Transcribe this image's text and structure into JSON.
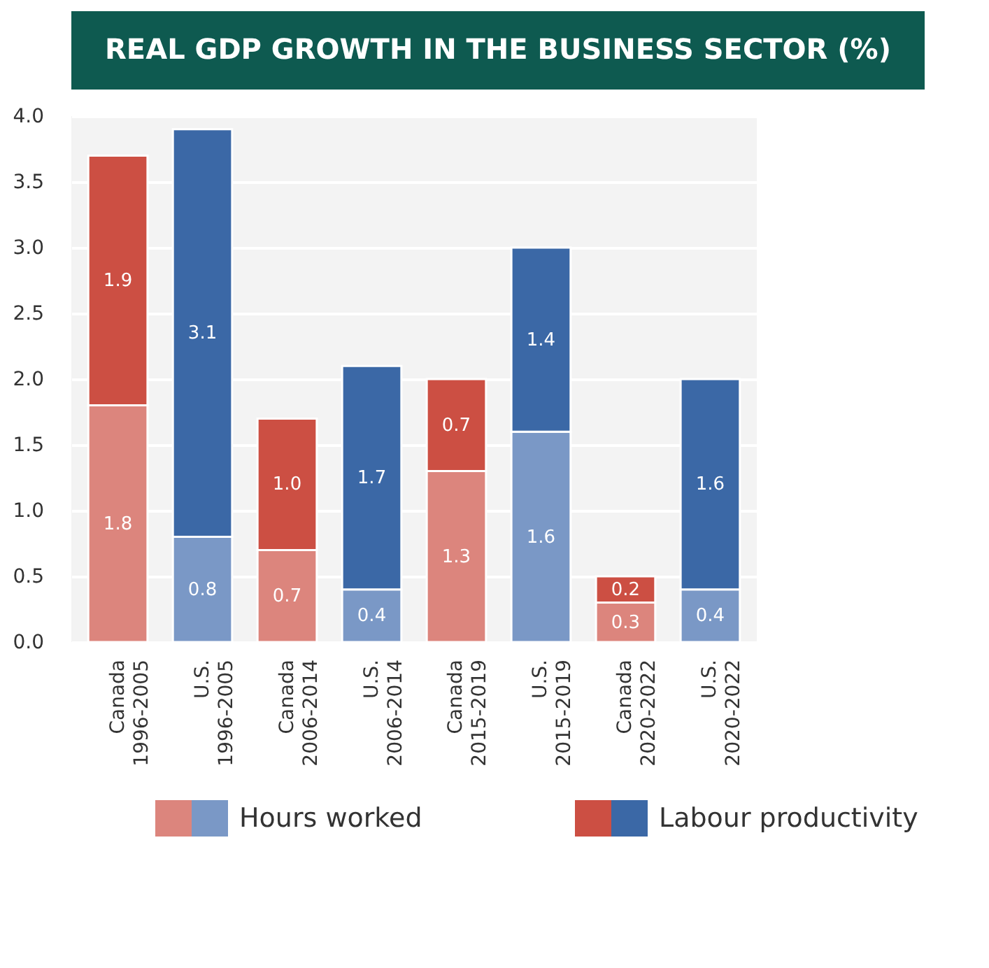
{
  "chart_data": {
    "type": "bar",
    "title": "REAL GDP GROWTH IN THE BUSINESS SECTOR (%)",
    "categories": [
      "Canada\n1996-2005",
      "U.S.\n1996-2005",
      "Canada\n2006-2014",
      "U.S.\n2006-2014",
      "Canada\n2015-2019",
      "U.S.\n2015-2019",
      "Canada\n2020-2022",
      "U.S.\n2020-2022"
    ],
    "stacked": true,
    "series": [
      {
        "name": "Hours worked",
        "colors": [
          "#dc857d",
          "#7a98c6",
          "#dc857d",
          "#7a98c6",
          "#dc857d",
          "#7a98c6",
          "#dc857d",
          "#7a98c6"
        ],
        "values": [
          1.8,
          0.8,
          0.7,
          0.4,
          1.3,
          1.6,
          0.3,
          0.4
        ],
        "value_labels": [
          "1.8",
          "0.8",
          "0.7",
          "0.4",
          "1.3",
          "1.6",
          "0.3",
          "0.4"
        ]
      },
      {
        "name": "Labour productivity",
        "colors": [
          "#cc4f43",
          "#3b68a6",
          "#cc4f43",
          "#3b68a6",
          "#cc4f43",
          "#3b68a6",
          "#cc4f43",
          "#3b68a6"
        ],
        "values": [
          1.9,
          3.1,
          1.0,
          1.7,
          0.7,
          1.4,
          0.2,
          1.6
        ],
        "value_labels": [
          "1.9",
          "3.1",
          "1.0",
          "1.7",
          "0.7",
          "1.4",
          "0.2",
          "1.6"
        ]
      }
    ],
    "ylim": [
      0,
      4.0
    ],
    "yticks": [
      {
        "value": 0,
        "label": "0.0"
      },
      {
        "value": 0.5,
        "label": "0.5"
      },
      {
        "value": 1.0,
        "label": "1.0"
      },
      {
        "value": 1.5,
        "label": "1.5"
      },
      {
        "value": 2.0,
        "label": "2.0"
      },
      {
        "value": 2.5,
        "label": "2.5"
      },
      {
        "value": 3.0,
        "label": "3.0"
      },
      {
        "value": 3.5,
        "label": "3.5"
      },
      {
        "value": 4.0,
        "label": "4.0"
      }
    ],
    "grid": "y",
    "legend": "bottom"
  }
}
